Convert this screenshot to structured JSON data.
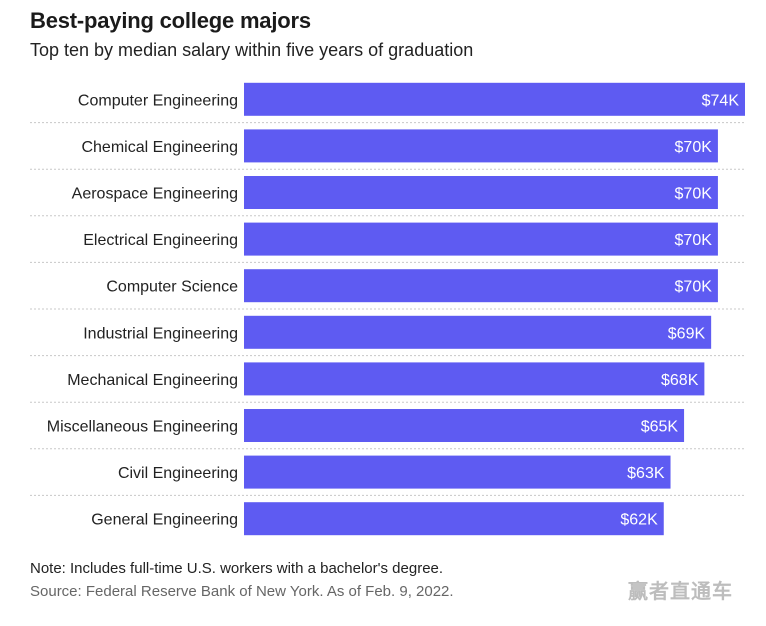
{
  "header": {
    "title": "Best-paying college majors",
    "subtitle": "Top ten by median salary within five years of graduation"
  },
  "colors": {
    "bar": "#5e5bf2",
    "separator": "#c8c8c8"
  },
  "chart_data": {
    "type": "bar",
    "orientation": "horizontal",
    "title": "Best-paying college majors",
    "subtitle": "Top ten by median salary within five years of graduation",
    "xlabel": "",
    "ylabel": "",
    "unit": "thousand USD",
    "xlim": [
      0,
      74
    ],
    "categories": [
      "Computer Engineering",
      "Chemical Engineering",
      "Aerospace Engineering",
      "Electrical Engineering",
      "Computer Science",
      "Industrial Engineering",
      "Mechanical Engineering",
      "Miscellaneous Engineering",
      "Civil Engineering",
      "General Engineering"
    ],
    "values": [
      74,
      70,
      70,
      70,
      70,
      69,
      68,
      65,
      63,
      62
    ],
    "data_labels": [
      "$74K",
      "$70K",
      "$70K",
      "$70K",
      "$70K",
      "$69K",
      "$68K",
      "$65K",
      "$63K",
      "$62K"
    ]
  },
  "footer": {
    "note": "Note: Includes full-time U.S. workers with a bachelor's degree.",
    "source": "Source: Federal Reserve Bank of New York. As of Feb. 9, 2022."
  },
  "watermark": {
    "text": "赢者直通车"
  }
}
